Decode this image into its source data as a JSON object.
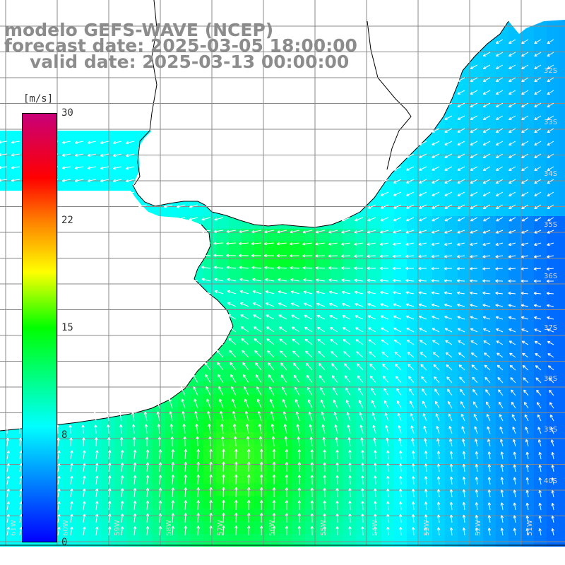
{
  "title": {
    "line1": "modelo GEFS-WAVE (NCEP)",
    "line2": "forecast date: 2025-03-05 18:00:00",
    "line3": "valid date: 2025-03-13 00:00:00"
  },
  "colorbar": {
    "unit": "[m/s]",
    "ticks": [
      "30",
      "22",
      "15",
      "8",
      "0"
    ],
    "colors": [
      "#0000ff",
      "#00ffff",
      "#00ff00",
      "#ffff00",
      "#ff7f00",
      "#ff0000",
      "#c8007a"
    ]
  },
  "lat_labels": [
    "32S",
    "33S",
    "34S",
    "35S",
    "36S",
    "37S",
    "38S",
    "39S",
    "40S"
  ],
  "lon_labels": [
    "61W",
    "60W",
    "59W",
    "58W",
    "57W",
    "56W",
    "55W",
    "54W",
    "53W",
    "52W",
    "51W"
  ],
  "map_data": {
    "lon_range": [
      -61.1,
      -50.1
    ],
    "lat_range": [
      -30.5,
      -41.0
    ],
    "grid_step_lon": 1,
    "grid_step_lat": 0.5,
    "variable": "wind speed",
    "unit": "m/s",
    "vectors": "wind direction arrows"
  }
}
